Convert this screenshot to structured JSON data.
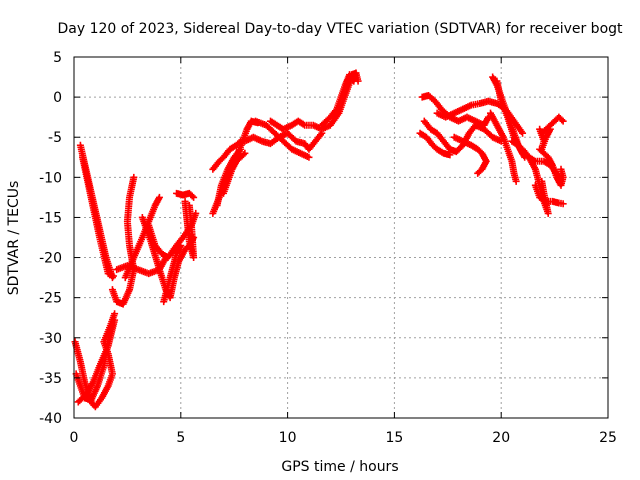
{
  "chart_data": {
    "type": "scatter",
    "title": "Day 120 of 2023, Sidereal Day-to-day VTEC variation (SDTVAR) for receiver bogt",
    "xlabel": "GPS time / hours",
    "ylabel": "SDTVAR / TECUs",
    "xlim": [
      0,
      25
    ],
    "ylim": [
      -40,
      5
    ],
    "xticks": [
      0,
      5,
      10,
      15,
      20,
      25
    ],
    "yticks": [
      5,
      0,
      -5,
      -10,
      -15,
      -20,
      -25,
      -30,
      -35,
      -40
    ],
    "grid": true,
    "marker": "plus",
    "color": "#ff0000",
    "series": [
      {
        "values": [
          [
            0.3,
            -6.0
          ],
          [
            0.6,
            -9.5
          ],
          [
            0.9,
            -13.0
          ],
          [
            1.2,
            -16.5
          ],
          [
            1.5,
            -20.0
          ],
          [
            1.8,
            -22.5
          ]
        ]
      },
      {
        "values": [
          [
            0.4,
            -7.5
          ],
          [
            0.8,
            -12.5
          ],
          [
            1.2,
            -17.5
          ],
          [
            1.6,
            -22.0
          ],
          [
            1.85,
            -22.3
          ]
        ]
      },
      {
        "values": [
          [
            0.05,
            -30.5
          ],
          [
            0.3,
            -33.0
          ],
          [
            0.5,
            -35.5
          ],
          [
            0.8,
            -38.0
          ],
          [
            1.0,
            -38.6
          ],
          [
            1.3,
            -37.5
          ],
          [
            1.6,
            -36.0
          ],
          [
            1.8,
            -34.5
          ],
          [
            1.6,
            -32.0
          ],
          [
            1.4,
            -30.5
          ],
          [
            1.7,
            -28.5
          ],
          [
            1.9,
            -27.0
          ]
        ]
      },
      {
        "values": [
          [
            0.1,
            -34.5
          ],
          [
            0.3,
            -36.0
          ],
          [
            0.5,
            -37.5
          ],
          [
            0.8,
            -37.8
          ],
          [
            1.1,
            -36.0
          ],
          [
            1.4,
            -33.5
          ],
          [
            1.6,
            -30.5
          ],
          [
            1.8,
            -28.5
          ]
        ]
      },
      {
        "values": [
          [
            0.2,
            -38.0
          ],
          [
            0.6,
            -37.0
          ],
          [
            0.9,
            -35.5
          ],
          [
            1.2,
            -33.5
          ],
          [
            1.6,
            -31.0
          ],
          [
            1.9,
            -27.8
          ]
        ]
      },
      {
        "values": [
          [
            1.8,
            -24.0
          ],
          [
            2.0,
            -25.5
          ],
          [
            2.3,
            -25.8
          ],
          [
            2.6,
            -24.0
          ],
          [
            2.8,
            -21.5
          ],
          [
            2.6,
            -18.5
          ],
          [
            2.5,
            -15.5
          ],
          [
            2.6,
            -12.5
          ],
          [
            2.8,
            -10.0
          ]
        ]
      },
      {
        "values": [
          [
            2.0,
            -21.5
          ],
          [
            2.5,
            -21.0
          ],
          [
            3.0,
            -21.5
          ],
          [
            3.5,
            -22.0
          ],
          [
            4.0,
            -21.5
          ],
          [
            4.3,
            -20.0
          ]
        ]
      },
      {
        "values": [
          [
            2.4,
            -22.5
          ],
          [
            2.8,
            -20.0
          ],
          [
            3.2,
            -17.5
          ],
          [
            3.5,
            -15.5
          ],
          [
            3.8,
            -13.5
          ],
          [
            4.0,
            -12.5
          ]
        ]
      },
      {
        "values": [
          [
            3.2,
            -15.0
          ],
          [
            3.6,
            -18.0
          ],
          [
            4.0,
            -21.5
          ],
          [
            4.3,
            -24.0
          ],
          [
            4.5,
            -25.0
          ],
          [
            4.7,
            -22.5
          ],
          [
            4.9,
            -20.5
          ],
          [
            5.2,
            -19.0
          ],
          [
            5.4,
            -18.5
          ],
          [
            5.6,
            -17.5
          ]
        ]
      },
      {
        "values": [
          [
            3.5,
            -16.0
          ],
          [
            3.8,
            -18.5
          ],
          [
            4.1,
            -19.5
          ],
          [
            4.4,
            -20.0
          ],
          [
            4.8,
            -18.5
          ],
          [
            5.1,
            -17.5
          ],
          [
            5.5,
            -16.0
          ],
          [
            5.7,
            -14.5
          ]
        ]
      },
      {
        "values": [
          [
            4.2,
            -25.5
          ],
          [
            4.4,
            -23.5
          ],
          [
            4.6,
            -21.5
          ],
          [
            4.8,
            -19.5
          ],
          [
            5.0,
            -18.5
          ]
        ]
      },
      {
        "values": [
          [
            4.8,
            -12.0
          ],
          [
            5.1,
            -12.2
          ],
          [
            5.4,
            -12.0
          ],
          [
            5.6,
            -12.5
          ]
        ]
      },
      {
        "values": [
          [
            5.2,
            -13.0
          ],
          [
            5.3,
            -15.5
          ],
          [
            5.4,
            -18.0
          ],
          [
            5.6,
            -20.0
          ],
          [
            5.5,
            -16.0
          ],
          [
            5.4,
            -13.5
          ]
        ]
      },
      {
        "values": [
          [
            6.5,
            -14.5
          ],
          [
            6.8,
            -12.5
          ],
          [
            7.1,
            -10.5
          ],
          [
            7.3,
            -9.0
          ],
          [
            7.6,
            -7.5
          ],
          [
            7.9,
            -5.5
          ],
          [
            8.1,
            -4.0
          ],
          [
            8.3,
            -3.0
          ],
          [
            8.6,
            -3.2
          ]
        ]
      },
      {
        "values": [
          [
            6.5,
            -9.0
          ],
          [
            6.8,
            -8.0
          ],
          [
            7.0,
            -7.5
          ],
          [
            7.3,
            -6.5
          ],
          [
            7.6,
            -6.0
          ],
          [
            7.8,
            -5.5
          ]
        ]
      },
      {
        "values": [
          [
            7.0,
            -12.0
          ],
          [
            7.2,
            -10.5
          ],
          [
            7.4,
            -9.0
          ],
          [
            7.6,
            -8.0
          ],
          [
            7.8,
            -7.5
          ],
          [
            8.0,
            -7.0
          ]
        ]
      },
      {
        "values": [
          [
            6.7,
            -13.5
          ],
          [
            6.9,
            -11.0
          ],
          [
            7.2,
            -9.0
          ],
          [
            7.5,
            -7.5
          ],
          [
            7.8,
            -6.5
          ]
        ]
      },
      {
        "values": [
          [
            8.0,
            -5.5
          ],
          [
            8.4,
            -5.0
          ],
          [
            8.8,
            -5.5
          ],
          [
            9.2,
            -5.8
          ],
          [
            9.6,
            -5.0
          ],
          [
            10.0,
            -4.5
          ],
          [
            10.4,
            -5.5
          ],
          [
            10.8,
            -5.8
          ],
          [
            11.0,
            -6.5
          ],
          [
            11.3,
            -5.5
          ],
          [
            11.6,
            -4.5
          ]
        ]
      },
      {
        "values": [
          [
            8.5,
            -3.0
          ],
          [
            9.0,
            -3.5
          ],
          [
            9.4,
            -4.5
          ],
          [
            9.8,
            -5.5
          ],
          [
            10.2,
            -6.5
          ],
          [
            10.6,
            -7.0
          ],
          [
            11.0,
            -7.5
          ]
        ]
      },
      {
        "values": [
          [
            9.2,
            -3.0
          ],
          [
            9.5,
            -3.5
          ],
          [
            9.8,
            -4.0
          ],
          [
            10.2,
            -3.5
          ],
          [
            10.5,
            -3.0
          ],
          [
            10.8,
            -3.5
          ],
          [
            11.2,
            -3.5
          ],
          [
            11.6,
            -4.0
          ],
          [
            12.0,
            -3.5
          ],
          [
            12.4,
            -2.0
          ],
          [
            12.6,
            -0.5
          ],
          [
            12.8,
            1.0
          ],
          [
            13.0,
            2.5
          ]
        ]
      },
      {
        "values": [
          [
            11.6,
            -3.5
          ],
          [
            12.0,
            -2.5
          ],
          [
            12.3,
            -1.5
          ],
          [
            12.5,
            0.0
          ],
          [
            12.7,
            1.5
          ],
          [
            12.9,
            2.8
          ],
          [
            13.1,
            2.0
          ],
          [
            13.2,
            3.0
          ]
        ]
      },
      {
        "values": [
          [
            12.8,
            2.0
          ],
          [
            13.0,
            2.8
          ],
          [
            13.2,
            3.0
          ],
          [
            13.3,
            2.0
          ]
        ]
      },
      {
        "values": [
          [
            16.3,
            0.0
          ],
          [
            16.6,
            0.2
          ],
          [
            16.9,
            -0.5
          ],
          [
            17.2,
            -1.5
          ],
          [
            17.6,
            -2.5
          ],
          [
            18.0,
            -3.0
          ],
          [
            18.4,
            -2.5
          ],
          [
            18.8,
            -3.0
          ],
          [
            19.2,
            -3.5
          ],
          [
            19.4,
            -2.5
          ]
        ]
      },
      {
        "values": [
          [
            16.4,
            -3.0
          ],
          [
            16.7,
            -4.0
          ],
          [
            17.0,
            -4.5
          ],
          [
            17.3,
            -5.5
          ],
          [
            17.6,
            -6.5
          ],
          [
            17.9,
            -6.8
          ],
          [
            18.2,
            -6.0
          ],
          [
            18.5,
            -4.5
          ],
          [
            18.8,
            -3.5
          ],
          [
            19.2,
            -4.0
          ],
          [
            19.6,
            -5.0
          ],
          [
            20.0,
            -5.5
          ]
        ]
      },
      {
        "values": [
          [
            16.2,
            -4.5
          ],
          [
            16.5,
            -5.0
          ],
          [
            16.8,
            -6.0
          ],
          [
            17.0,
            -6.5
          ],
          [
            17.3,
            -7.0
          ],
          [
            17.6,
            -7.2
          ]
        ]
      },
      {
        "values": [
          [
            17.0,
            -2.0
          ],
          [
            17.4,
            -2.5
          ],
          [
            17.8,
            -2.0
          ],
          [
            18.2,
            -1.5
          ],
          [
            18.6,
            -1.0
          ],
          [
            19.0,
            -0.8
          ],
          [
            19.4,
            -0.5
          ],
          [
            19.8,
            -0.8
          ],
          [
            20.2,
            -1.5
          ],
          [
            20.6,
            -3.0
          ],
          [
            21.0,
            -4.5
          ]
        ]
      },
      {
        "values": [
          [
            17.8,
            -5.0
          ],
          [
            18.2,
            -5.5
          ],
          [
            18.6,
            -6.0
          ],
          [
            18.9,
            -6.5
          ],
          [
            19.1,
            -7.0
          ],
          [
            19.3,
            -8.0
          ],
          [
            19.1,
            -9.0
          ],
          [
            18.9,
            -9.5
          ]
        ]
      },
      {
        "values": [
          [
            19.6,
            2.5
          ],
          [
            19.8,
            1.5
          ],
          [
            20.0,
            0.0
          ],
          [
            20.2,
            -1.5
          ],
          [
            20.4,
            -3.0
          ],
          [
            20.6,
            -4.5
          ],
          [
            20.8,
            -6.0
          ],
          [
            21.0,
            -7.0
          ]
        ]
      },
      {
        "values": [
          [
            19.8,
            2.0
          ],
          [
            20.0,
            -0.5
          ],
          [
            20.3,
            -2.5
          ],
          [
            20.6,
            -5.0
          ],
          [
            20.9,
            -6.5
          ],
          [
            21.1,
            -7.5
          ]
        ]
      },
      {
        "values": [
          [
            19.5,
            -2.0
          ],
          [
            19.8,
            -3.5
          ],
          [
            20.1,
            -5.0
          ],
          [
            20.3,
            -6.5
          ],
          [
            20.5,
            -8.0
          ],
          [
            20.6,
            -9.5
          ],
          [
            20.7,
            -10.5
          ]
        ]
      },
      {
        "values": [
          [
            20.5,
            -5.5
          ],
          [
            20.8,
            -6.0
          ],
          [
            21.0,
            -7.0
          ],
          [
            21.3,
            -7.5
          ],
          [
            21.6,
            -8.0
          ],
          [
            22.0,
            -8.0
          ],
          [
            22.3,
            -8.5
          ],
          [
            22.6,
            -9.5
          ],
          [
            22.8,
            -10.5
          ]
        ]
      },
      {
        "values": [
          [
            21.0,
            -6.5
          ],
          [
            21.3,
            -7.5
          ],
          [
            21.6,
            -9.0
          ],
          [
            21.8,
            -11.0
          ],
          [
            22.0,
            -13.0
          ],
          [
            22.2,
            -14.5
          ],
          [
            22.0,
            -12.0
          ],
          [
            21.9,
            -10.5
          ]
        ]
      },
      {
        "values": [
          [
            21.6,
            -11.0
          ],
          [
            21.8,
            -12.5
          ],
          [
            22.1,
            -13.0
          ],
          [
            22.4,
            -13.0
          ],
          [
            22.7,
            -13.2
          ],
          [
            22.9,
            -13.3
          ]
        ]
      },
      {
        "values": [
          [
            21.9,
            -4.5
          ],
          [
            22.1,
            -4.0
          ],
          [
            22.3,
            -3.5
          ],
          [
            22.5,
            -3.0
          ],
          [
            22.7,
            -2.5
          ],
          [
            22.9,
            -3.0
          ]
        ]
      },
      {
        "values": [
          [
            21.8,
            -6.5
          ],
          [
            22.0,
            -7.0
          ],
          [
            22.2,
            -7.5
          ],
          [
            22.4,
            -8.5
          ],
          [
            22.6,
            -10.0
          ],
          [
            22.8,
            -11.0
          ],
          [
            22.9,
            -10.0
          ],
          [
            22.8,
            -9.0
          ]
        ]
      },
      {
        "values": [
          [
            21.8,
            -4.0
          ],
          [
            22.0,
            -5.5
          ],
          [
            21.9,
            -6.5
          ],
          [
            22.1,
            -5.0
          ],
          [
            22.3,
            -4.0
          ]
        ]
      }
    ]
  }
}
